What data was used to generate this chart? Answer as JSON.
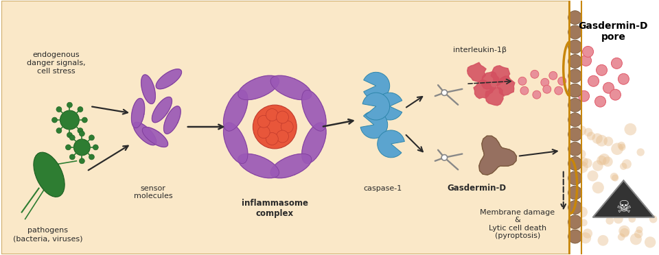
{
  "bg_color": "#FAE8C8",
  "outer_bg": "#FFFFFF",
  "membrane_color": "#C8860A",
  "arrow_color": "#2A2A2A",
  "text_color": "#2A2A2A",
  "purple": "#9B59B6",
  "purple_dark": "#7D3C98",
  "red_orange": "#E8563A",
  "blue": "#5BA4CF",
  "green_dark": "#2E7D32",
  "green_mid": "#3A8A3A",
  "brown": "#8B6355",
  "brown_light": "#A0785A",
  "brown_dark": "#7A5A3A",
  "pink_red": "#E05A6A",
  "dot_pink": "#E8909A",
  "scissors_color": "#888888",
  "title": "Gasdermin-D\npore",
  "label_endogenous": "endogenous\ndanger signals,\ncell stress",
  "label_pathogens": "pathogens\n(bacteria, viruses)",
  "label_sensor": "sensor\nmolecules",
  "label_inflammasome": "inflammasome\ncomplex",
  "label_caspase": "caspase-1",
  "label_interleukin": "interleukin-1β",
  "label_gasderminD": "Gasdermin-D",
  "label_membrane": "Membrane damage\n&\nLytic cell death\n(pyroptosis)"
}
